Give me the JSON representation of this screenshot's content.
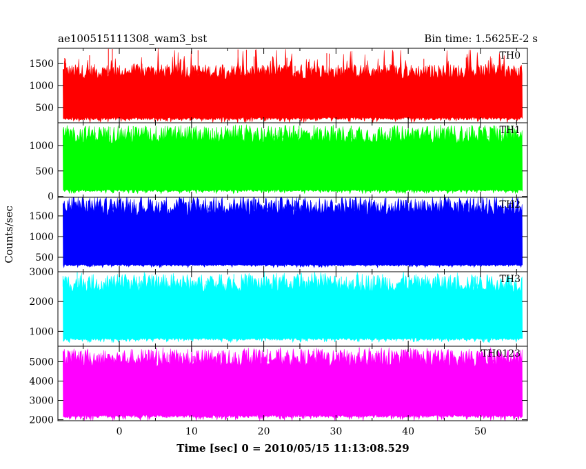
{
  "header": {
    "left_title": "ae100515111308_wam3_bst",
    "right_title": "Bin time: 1.5625E-2 s"
  },
  "axes": {
    "ylabel": "Counts/sec",
    "xlabel": "Time [sec] 0 = 2010/05/15 11:13:08.529"
  },
  "chart_data": {
    "type": "line",
    "x_range": [
      -8.5,
      56.5
    ],
    "data_range": [
      -7.8,
      55.8
    ],
    "x_ticks": [
      0,
      10,
      20,
      30,
      40,
      50
    ],
    "panels": [
      {
        "name": "TH0",
        "color": "#ff0000",
        "ylim": [
          150,
          1850
        ],
        "y_ticks": [
          500,
          1000,
          1500
        ],
        "band_low": 280,
        "band_high": 1250,
        "spike_max": 1850,
        "dip_min": 150
      },
      {
        "name": "TH1",
        "color": "#00ff00",
        "ylim": [
          -20,
          1450
        ],
        "y_ticks": [
          0,
          500,
          1000
        ],
        "band_low": 130,
        "band_high": 1150,
        "spike_max": 1420,
        "dip_min": 50
      },
      {
        "name": "TH2",
        "color": "#0000ff",
        "ylim": [
          150,
          1950
        ],
        "y_ticks": [
          500,
          1000,
          1500
        ],
        "band_low": 330,
        "band_high": 1650,
        "spike_max": 1950,
        "dip_min": 250
      },
      {
        "name": "TH3",
        "color": "#00ffff",
        "ylim": [
          500,
          3000
        ],
        "y_ticks": [
          1000,
          2000,
          3000
        ],
        "band_low": 780,
        "band_high": 2500,
        "spike_max": 3000,
        "dip_min": 620
      },
      {
        "name": "TH0123",
        "color": "#ff00ff",
        "ylim": [
          1950,
          5800
        ],
        "y_ticks": [
          2000,
          3000,
          4000,
          5000
        ],
        "band_low": 2250,
        "band_high": 5000,
        "spike_max": 5750,
        "dip_min": 1950
      }
    ]
  }
}
